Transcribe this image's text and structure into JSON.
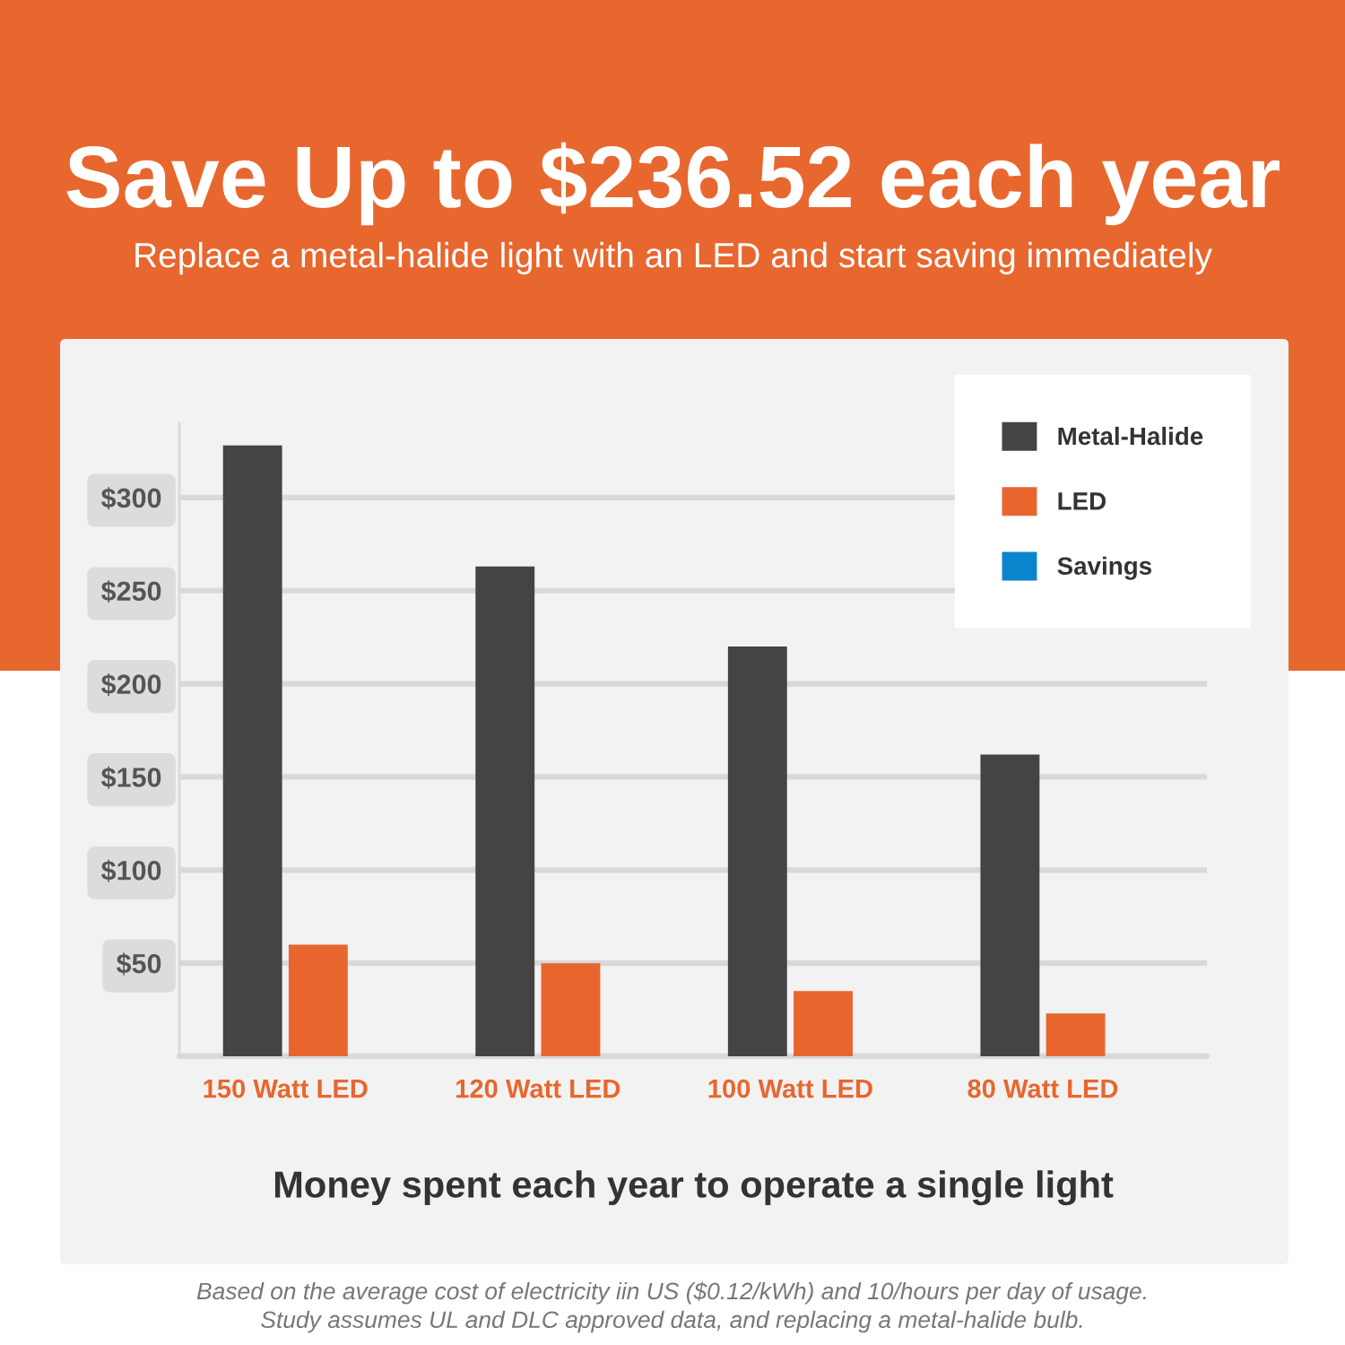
{
  "chart_data": {
    "type": "bar",
    "title": "Save Up to $236.52 each year",
    "subtitle": "Replace a metal-halide light with an LED and start saving immediately",
    "xlabel": "Money spent each year to operate a single light",
    "categories": [
      "150 Watt LED",
      "120 Watt LED",
      "100 Watt LED",
      "80 Watt LED"
    ],
    "series": [
      {
        "name": "Metal-Halide",
        "color": "#444444",
        "values": [
          328,
          263,
          220,
          162
        ]
      },
      {
        "name": "LED",
        "color": "#e8662e",
        "values": [
          60,
          50,
          35,
          23
        ]
      },
      {
        "name": "Savings",
        "color": "#0a84cc",
        "values": [
          null,
          null,
          null,
          null
        ]
      }
    ],
    "ylim": [
      0,
      340
    ],
    "yticks": [
      {
        "value": 50,
        "label": "$50"
      },
      {
        "value": 100,
        "label": "$100"
      },
      {
        "value": 150,
        "label": "$150"
      },
      {
        "value": 200,
        "label": "$200"
      },
      {
        "value": 250,
        "label": "$250"
      },
      {
        "value": 300,
        "label": "$300"
      }
    ],
    "grid": "y",
    "legend": "top right",
    "annotations": [
      "Based on the average cost of electricity iin US ($0.12/kWh) and 10/hours per day of usage.",
      "Study assumes UL and DLC approved data, and replacing a metal-halide bulb."
    ]
  }
}
